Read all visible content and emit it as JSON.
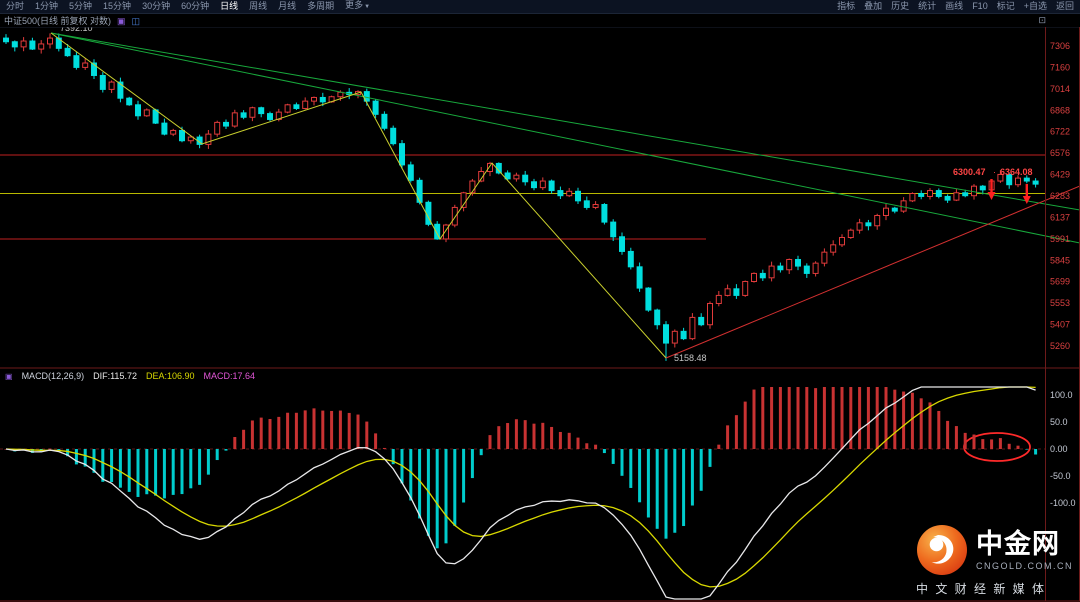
{
  "topbar": {
    "left_items": [
      "分时",
      "1分钟",
      "5分钟",
      "15分钟",
      "30分钟",
      "60分钟",
      "日线",
      "周线",
      "月线",
      "多周期",
      "更多"
    ],
    "more_arrow": "▼",
    "active_left": "日线",
    "right_items": [
      "指标",
      "叠加",
      "历史",
      "统计",
      "画线",
      "F10",
      "标记",
      "+自选",
      "返回"
    ]
  },
  "titlebar": {
    "title": "中证500(日线 前复权 对数)",
    "icon1": "▣",
    "icon2": "◫",
    "icon3": "⊡"
  },
  "main_chart": {
    "y_axis_labels": [
      "7306",
      "7160",
      "7014",
      "6868",
      "6722",
      "6576",
      "6429",
      "6283",
      "6137",
      "5991",
      "5845",
      "5699",
      "5553",
      "5407",
      "5260"
    ],
    "annotations": {
      "peak_label": "7392.10",
      "trough_label": "5158.48",
      "price_label_1": "6300.47",
      "price_label_2": "6364.08",
      "separator": "·"
    },
    "colors": {
      "up": "#e23b3b",
      "down": "#00dede",
      "trend_green": "#18a83c",
      "trend_red": "#d23030",
      "trend_yellow": "#c9cf2e",
      "alert_red": "#c01f1f",
      "alert_yellow": "#b9b900",
      "axis_text": "#d94040"
    }
  },
  "macd_panel": {
    "icon": "▣",
    "indicator_label": "MACD(12,26,9)",
    "dif_label": "DIF:115.72",
    "dea_label": "DEA:106.90",
    "macd_label": "MACD:17.64",
    "y_axis_labels": [
      "100.0",
      "50.0",
      "0.00",
      "-50.0",
      "-100.0"
    ],
    "colors": {
      "hist_pos": "#c83232",
      "hist_neg": "#00cdcd",
      "dif_line": "#e8e8ea",
      "dea_line": "#d8d800",
      "highlight": "#ff2a2a",
      "axis_text": "#c4c9d4"
    }
  },
  "watermark": {
    "brand": "中金网",
    "domain": "CNGOLD.COM.CN",
    "tagline": "中 文 财 经 新 媒 体"
  },
  "chart_data": {
    "type": "candlestick",
    "symbol": "中证500",
    "period": "日线 前复权 对数",
    "y_range": [
      5260,
      7306
    ],
    "key_points": {
      "peak": 7392.1,
      "trough": 5158.48,
      "alert_line": 6300.47,
      "last_close": 6364.08
    },
    "indicator": {
      "name": "MACD",
      "params": [
        12,
        26,
        9
      ],
      "dif": 115.72,
      "dea": 106.9,
      "macd": 17.64
    },
    "closes": [
      7335,
      7300,
      7340,
      7285,
      7320,
      7360,
      7290,
      7240,
      7160,
      7190,
      7105,
      7010,
      7060,
      6950,
      6905,
      6830,
      6870,
      6780,
      6705,
      6730,
      6660,
      6685,
      6635,
      6705,
      6785,
      6760,
      6850,
      6820,
      6885,
      6845,
      6805,
      6855,
      6905,
      6880,
      6930,
      6955,
      6925,
      6960,
      6990,
      6975,
      6995,
      6930,
      6840,
      6745,
      6640,
      6495,
      6390,
      6240,
      6090,
      5990,
      6085,
      6205,
      6305,
      6385,
      6450,
      6505,
      6440,
      6400,
      6425,
      6380,
      6340,
      6385,
      6320,
      6285,
      6315,
      6250,
      6205,
      6225,
      6105,
      6005,
      5905,
      5800,
      5655,
      5505,
      5405,
      5280,
      5360,
      5310,
      5455,
      5405,
      5550,
      5605,
      5650,
      5605,
      5700,
      5755,
      5725,
      5805,
      5780,
      5850,
      5805,
      5755,
      5825,
      5900,
      5950,
      6000,
      6050,
      6100,
      6080,
      6150,
      6200,
      6180,
      6250,
      6300,
      6280,
      6320,
      6280,
      6255,
      6305,
      6285,
      6350,
      6325,
      6385,
      6430,
      6360,
      6405,
      6385,
      6364
    ]
  }
}
